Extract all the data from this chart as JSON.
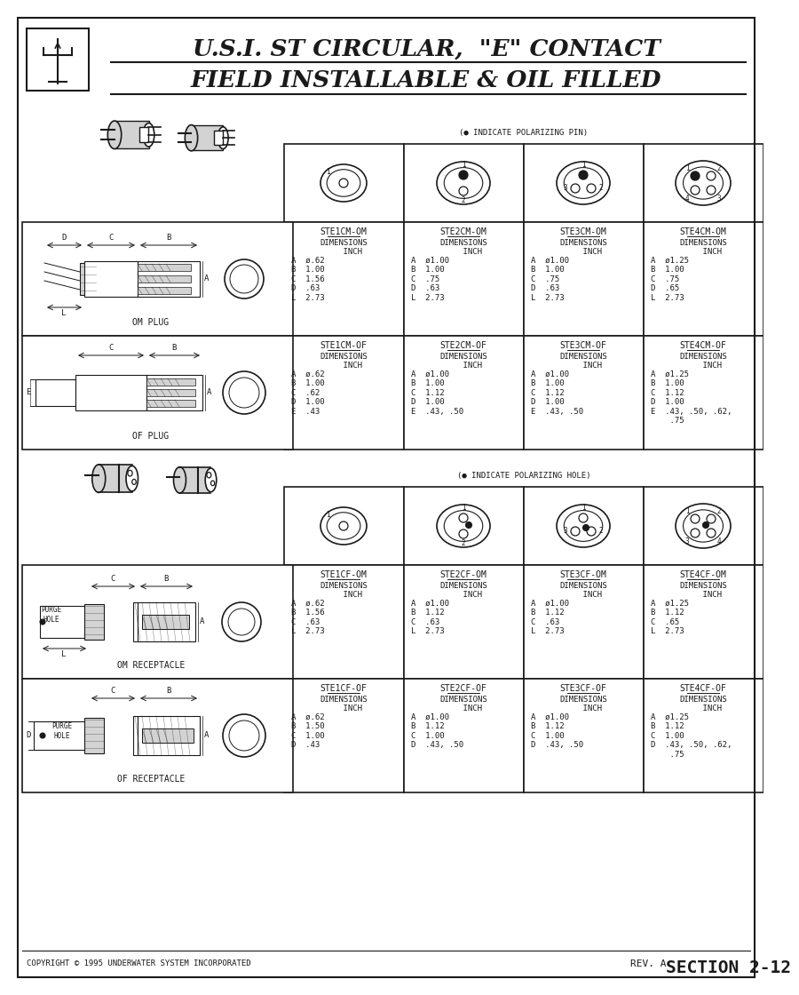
{
  "title_line1": "U.S.I. ST CIRCULAR,  \"E\" CONTACT",
  "title_line2": "FIELD INSTALLABLE & OIL FILLED",
  "bg_color": "#ffffff",
  "text_color": "#1a1a1a",
  "plug_section_label": "(● INDICATE POLARIZING PIN)",
  "receptacle_section_label": "(● INDICATE POLARIZING HOLE)",
  "plug_table_om": [
    {
      "title": "STE1CM-OM",
      "data": "A  ø.62\nB  1.00\nC  1.56\nD  .63\nL  2.73"
    },
    {
      "title": "STE2CM-OM",
      "data": "A  ø1.00\nB  1.00\nC  .75\nD  .63\nL  2.73"
    },
    {
      "title": "STE3CM-OM",
      "data": "A  ø1.00\nB  1.00\nC  .75\nD  .63\nL  2.73"
    },
    {
      "title": "STE4CM-OM",
      "data": "A  ø1.25\nB  1.00\nC  .75\nD  .65\nL  2.73"
    }
  ],
  "plug_table_of": [
    {
      "title": "STE1CM-OF",
      "data": "A  ø.62\nB  1.00\nC  .62\nD  1.00\nE  .43"
    },
    {
      "title": "STE2CM-OF",
      "data": "A  ø1.00\nB  1.00\nC  1.12\nD  1.00\nE  .43, .50"
    },
    {
      "title": "STE3CM-OF",
      "data": "A  ø1.00\nB  1.00\nC  1.12\nD  1.00\nE  .43, .50"
    },
    {
      "title": "STE4CM-OF",
      "data": "A  ø1.25\nB  1.00\nC  1.12\nD  1.00\nE  .43, .50, .62,\n    .75"
    }
  ],
  "rec_table_om": [
    {
      "title": "STE1CF-OM",
      "data": "A  ø.62\nB  1.56\nC  .63\nL  2.73"
    },
    {
      "title": "STE2CF-OM",
      "data": "A  ø1.00\nB  1.12\nC  .63\nL  2.73"
    },
    {
      "title": "STE3CF-OM",
      "data": "A  ø1.00\nB  1.12\nC  .63\nL  2.73"
    },
    {
      "title": "STE4CF-OM",
      "data": "A  ø1.25\nB  1.12\nC  .65\nL  2.73"
    }
  ],
  "rec_table_of": [
    {
      "title": "STE1CF-OF",
      "data": "A  ø.62\nB  1.50\nC  1.00\nD  .43"
    },
    {
      "title": "STE2CF-OF",
      "data": "A  ø1.00\nB  1.12\nC  1.00\nD  .43, .50"
    },
    {
      "title": "STE3CF-OF",
      "data": "A  ø1.00\nB  1.12\nC  1.00\nD  .43, .50"
    },
    {
      "title": "STE4CF-OF",
      "data": "A  ø1.25\nB  1.12\nC  1.00\nD  .43, .50, .62,\n    .75"
    }
  ],
  "footer_left": "COPYRIGHT © 1995 UNDERWATER SYSTEM INCORPORATED",
  "footer_right_small": "REV. A",
  "footer_right_large": "SECTION 2-12"
}
